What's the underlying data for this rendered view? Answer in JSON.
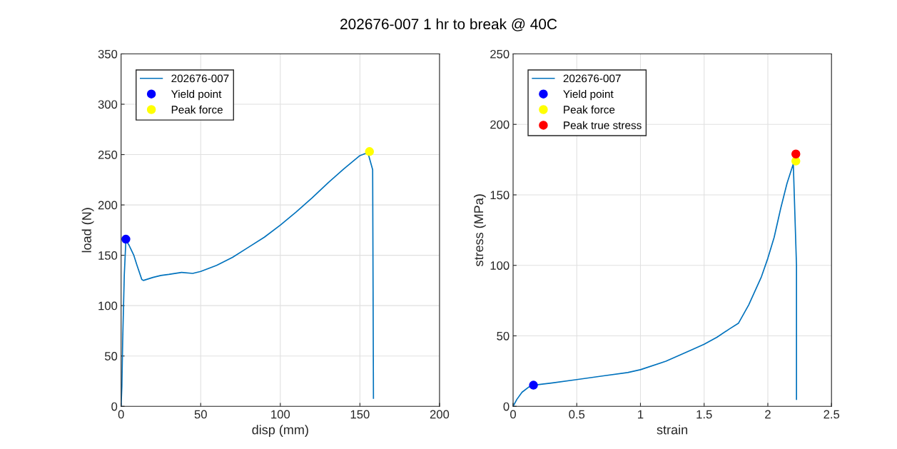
{
  "chart_data": [
    {
      "type": "line",
      "title": "202676-007 1 hr to break @ 40C",
      "xlabel": "disp (mm)",
      "ylabel": "load (N)",
      "xlim": [
        0,
        200
      ],
      "ylim": [
        0,
        350
      ],
      "xticks": [
        0,
        50,
        100,
        150,
        200
      ],
      "yticks": [
        0,
        50,
        100,
        150,
        200,
        250,
        300,
        350
      ],
      "grid": true,
      "legend": "top left",
      "series": [
        {
          "name": "202676-007",
          "color": "#0072bd",
          "marker": "none",
          "x": [
            0,
            0.5,
            1,
            2,
            3,
            5,
            8,
            10,
            13,
            14,
            20,
            25,
            30,
            38,
            45,
            50,
            60,
            70,
            80,
            90,
            100,
            110,
            120,
            130,
            140,
            150,
            155,
            158,
            158.5
          ],
          "values": [
            0,
            20,
            65,
            130,
            165,
            160,
            150,
            140,
            126,
            125,
            128,
            130,
            131,
            133,
            132,
            134,
            140,
            148,
            158,
            168,
            180,
            193,
            207,
            222,
            236,
            249,
            252,
            235,
            8
          ]
        },
        {
          "name": "Yield point",
          "type": "scatter",
          "color": "#0000ff",
          "marker": "circle",
          "x": [
            3
          ],
          "values": [
            166
          ]
        },
        {
          "name": "Peak force",
          "type": "scatter",
          "color": "#ffff00",
          "marker": "circle",
          "x": [
            156
          ],
          "values": [
            253
          ]
        }
      ]
    },
    {
      "type": "line",
      "xlabel": "strain",
      "ylabel": "stress (MPa)",
      "xlim": [
        0,
        2.5
      ],
      "ylim": [
        0,
        250
      ],
      "xticks": [
        0,
        0.5,
        1,
        1.5,
        2,
        2.5
      ],
      "yticks": [
        0,
        50,
        100,
        150,
        200,
        250
      ],
      "grid": true,
      "legend": "top left",
      "series": [
        {
          "name": "202676-007",
          "color": "#0072bd",
          "marker": "none",
          "x": [
            0,
            0.03,
            0.07,
            0.12,
            0.16,
            0.3,
            0.5,
            0.7,
            0.9,
            1.0,
            1.2,
            1.4,
            1.5,
            1.6,
            1.7,
            1.77,
            1.85,
            1.95,
            2.0,
            2.05,
            2.1,
            2.15,
            2.2,
            2.225,
            2.225
          ],
          "values": [
            0,
            5,
            10,
            13.5,
            15,
            16.5,
            19,
            21.5,
            24,
            26,
            32,
            40,
            44,
            49,
            55,
            59,
            72,
            92,
            105,
            120,
            140,
            158,
            172,
            100,
            5
          ]
        },
        {
          "name": "Yield point",
          "type": "scatter",
          "color": "#0000ff",
          "marker": "circle",
          "x": [
            0.16
          ],
          "values": [
            15
          ]
        },
        {
          "name": "Peak force",
          "type": "scatter",
          "color": "#ffff00",
          "marker": "circle",
          "x": [
            2.22
          ],
          "values": [
            174
          ]
        },
        {
          "name": "Peak true stress",
          "type": "scatter",
          "color": "#ff0000",
          "marker": "circle",
          "x": [
            2.22
          ],
          "values": [
            179
          ]
        }
      ]
    }
  ]
}
